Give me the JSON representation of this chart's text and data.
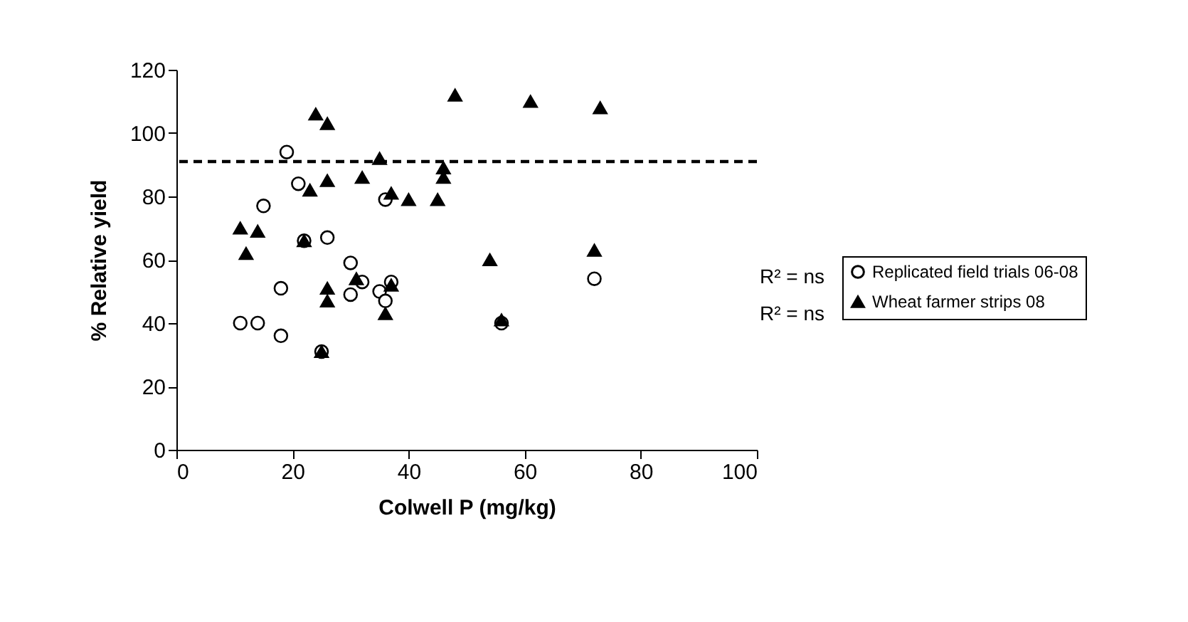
{
  "chart_data": {
    "type": "scatter",
    "xlabel": "Colwell P (mg/kg)",
    "ylabel": "% Relative yield",
    "xlim": [
      0,
      100
    ],
    "xticks": [
      0,
      20,
      40,
      60,
      80,
      100
    ],
    "ylim": [
      0,
      120
    ],
    "yticks": [
      0,
      20,
      40,
      60,
      80,
      100,
      120
    ],
    "grid": false,
    "legend": "right",
    "series": [
      {
        "name": "Replicated field trials 06-08",
        "color": "#000000",
        "marker": "circle",
        "x": [
          11,
          14,
          18,
          18,
          19,
          15,
          21,
          22,
          26,
          25,
          30,
          30,
          32,
          35,
          36,
          36,
          37,
          56,
          72
        ],
        "values": [
          40,
          40,
          36,
          51,
          94,
          77,
          84,
          66,
          67,
          31,
          59,
          49,
          53,
          50,
          47,
          79,
          53,
          40,
          54
        ]
      },
      {
        "name": "Wheat farmer strips 08",
        "color": "#000000",
        "marker": "triangle",
        "x": [
          11,
          12,
          14,
          22,
          23,
          24,
          26,
          26,
          26,
          26,
          25,
          31,
          32,
          35,
          36,
          37,
          37,
          40,
          45,
          46,
          46,
          48,
          54,
          56,
          61,
          72,
          73
        ],
        "values": [
          70,
          62,
          69,
          66,
          82,
          106,
          103,
          85,
          51,
          47,
          31,
          54,
          86,
          92,
          43,
          81,
          52,
          79,
          79,
          86,
          89,
          112,
          60,
          41,
          110,
          63,
          108
        ]
      }
    ],
    "ref_lines": [
      {
        "axis": "y",
        "value": 91,
        "color": "#000000",
        "line_style": "dashed"
      }
    ],
    "annotations": [
      "R² = ns",
      "R² = ns"
    ]
  }
}
